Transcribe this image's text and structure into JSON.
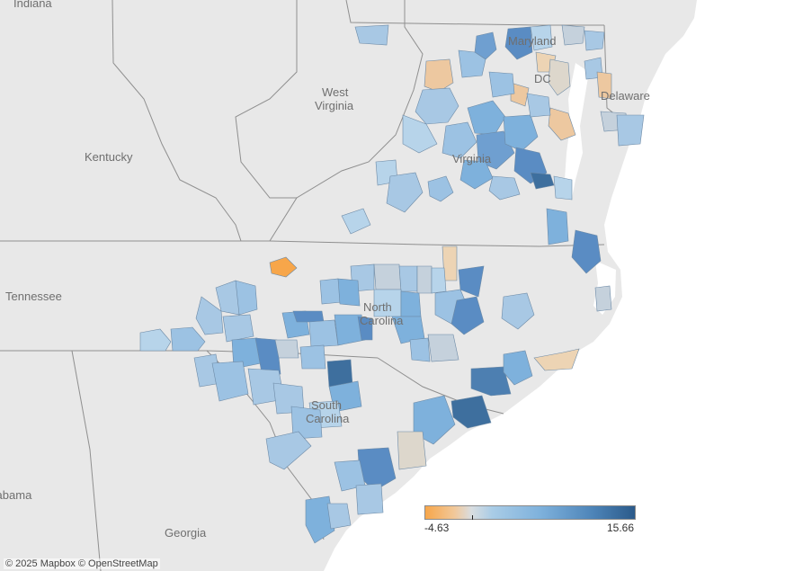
{
  "map": {
    "state_labels": {
      "indiana": "Indiana",
      "west_virginia_1": "West",
      "west_virginia_2": "Virginia",
      "kentucky": "Kentucky",
      "tennessee": "Tennessee",
      "maryland": "Maryland",
      "dc": "DC",
      "delaware": "Delaware",
      "virginia": "Virginia",
      "north_carolina_1": "North",
      "north_carolina_2": "Carolina",
      "south_carolina_1": "South",
      "south_carolina_2": "Carolina",
      "georgia": "Georgia",
      "alabama": "Alabama"
    },
    "legend": {
      "min": "-4.63",
      "max": "15.66",
      "scale_min": -4.63,
      "scale_max": 15.66,
      "colors": {
        "low": "#f7a64a",
        "mid": "#d9dde0",
        "high": "#2b5a8a"
      }
    },
    "attribution": "© 2025 Mapbox © OpenStreetMap",
    "colors": {
      "land": "#e8e8e8",
      "water": "#ffffff",
      "borders": "#9a9a9a"
    }
  }
}
